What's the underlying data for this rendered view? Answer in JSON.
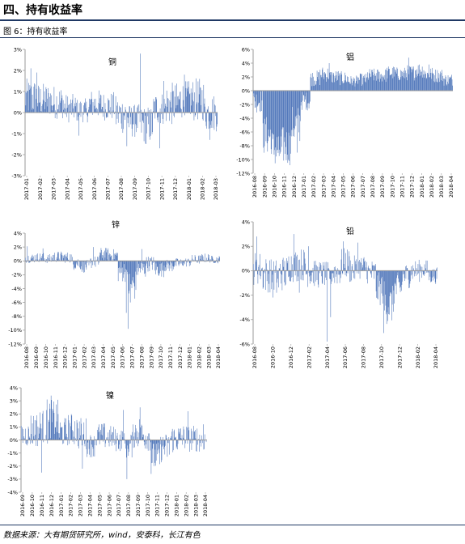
{
  "header": {
    "section_title": "四、持有收益率",
    "figure_caption": "图 6：持有收益率",
    "source": "数据来源：大有期货研究所，wind，安泰科，长江有色"
  },
  "style": {
    "bar_color": "#4a72b8",
    "axis_color": "#999999"
  },
  "chart_data": [
    {
      "type": "bar",
      "title": "铜",
      "ylim": [
        -3,
        3
      ],
      "yticks": [
        3,
        2,
        1,
        0,
        -1,
        -2,
        -3
      ],
      "ytick_labels": [
        "3%",
        "2%",
        "1%",
        "0%",
        "-1%",
        "-2%",
        "-3%"
      ],
      "x_labels": [
        "2017-01",
        "2017-02",
        "2017-03",
        "2017-04",
        "2017-05",
        "2017-06",
        "2017-07",
        "2017-08",
        "2017-09",
        "2017-10",
        "2017-11",
        "2017-12",
        "2018-01",
        "2018-02",
        "2018-03"
      ],
      "segments": [
        [
          0.7,
          0.8
        ],
        [
          0.6,
          0.7
        ],
        [
          0.5,
          0.7
        ],
        [
          0.2,
          0.6
        ],
        [
          0.1,
          0.5
        ],
        [
          0.4,
          0.6
        ],
        [
          0.3,
          0.6
        ],
        [
          -0.1,
          0.8
        ],
        [
          -0.4,
          0.7
        ],
        [
          -0.6,
          0.8
        ],
        [
          0.2,
          0.7
        ],
        [
          0.4,
          0.9
        ],
        [
          0.6,
          0.8
        ],
        [
          0.6,
          0.9
        ],
        [
          0.0,
          0.8
        ]
      ],
      "spikes": [
        [
          0.03,
          2.1
        ],
        [
          0.06,
          1.9
        ],
        [
          0.28,
          -1.1
        ],
        [
          0.48,
          -0.3
        ],
        [
          0.53,
          -1.6
        ],
        [
          0.63,
          -1.5
        ],
        [
          0.7,
          -1.7
        ],
        [
          0.6,
          2.8
        ],
        [
          0.72,
          1.5
        ],
        [
          0.83,
          1.8
        ],
        [
          0.96,
          -1.3
        ]
      ]
    },
    {
      "type": "bar",
      "title": "铝",
      "ylim": [
        -12,
        6
      ],
      "yticks": [
        6,
        4,
        2,
        0,
        -2,
        -4,
        -6,
        -8,
        -10,
        -12
      ],
      "ytick_labels": [
        "6%",
        "4%",
        "2%",
        "0%",
        "-2%",
        "-4%",
        "-6%",
        "-8%",
        "-10%",
        "-12%"
      ],
      "x_labels": [
        "2016-08",
        "2016-09",
        "2016-10",
        "2016-11",
        "2016-12",
        "2017-01",
        "2017-02",
        "2017-03",
        "2017-04",
        "2017-05",
        "2017-06",
        "2017-07",
        "2017-08",
        "2017-09",
        "2017-10",
        "2017-11",
        "2017-12",
        "2018-01",
        "2018-02",
        "2018-03",
        "2018-04"
      ],
      "segments": [
        [
          -1.5,
          1.5
        ],
        [
          -6.5,
          2.5
        ],
        [
          -8.5,
          2.5
        ],
        [
          -8,
          2.5
        ],
        [
          -5,
          2.5
        ],
        [
          -1.5,
          1.2
        ],
        [
          1.8,
          1.0
        ],
        [
          2.4,
          1.0
        ],
        [
          2.0,
          0.9
        ],
        [
          1.8,
          0.9
        ],
        [
          1.4,
          0.7
        ],
        [
          1.6,
          0.8
        ],
        [
          2.2,
          0.9
        ],
        [
          2.2,
          0.9
        ],
        [
          2.6,
          0.9
        ],
        [
          2.4,
          0.9
        ],
        [
          2.6,
          1.0
        ],
        [
          3.0,
          1.0
        ],
        [
          2.4,
          0.9
        ],
        [
          2.2,
          0.9
        ],
        [
          1.6,
          0.8
        ]
      ],
      "spikes": [
        [
          0.13,
          -9.5
        ],
        [
          0.18,
          -10.2
        ],
        [
          0.22,
          -9.0
        ],
        [
          0.09,
          -8.5
        ],
        [
          0.78,
          4.8
        ],
        [
          0.88,
          3.8
        ],
        [
          0.38,
          4.0
        ]
      ]
    },
    {
      "type": "bar",
      "title": "锌",
      "ylim": [
        -12,
        4
      ],
      "yticks": [
        4,
        2,
        0,
        -2,
        -4,
        -6,
        -8,
        -10,
        -12
      ],
      "ytick_labels": [
        "4%",
        "2%",
        "0%",
        "-2%",
        "-4%",
        "-6%",
        "-8%",
        "-10%",
        "-12%"
      ],
      "x_labels": [
        "2016-08",
        "2016-09",
        "2016-10",
        "2016-11",
        "2016-12",
        "2017-01",
        "2017-02",
        "2017-03",
        "2017-04",
        "2017-05",
        "2017-06",
        "2017-07",
        "2017-08",
        "2017-09",
        "2017-10",
        "2017-11",
        "2017-12",
        "2018-01",
        "2018-02",
        "2018-03",
        "2018-04"
      ],
      "segments": [
        [
          0.4,
          0.6
        ],
        [
          0.5,
          0.6
        ],
        [
          0.3,
          0.6
        ],
        [
          0.6,
          0.7
        ],
        [
          0.5,
          0.7
        ],
        [
          -0.3,
          0.9
        ],
        [
          -0.8,
          0.8
        ],
        [
          -0.2,
          0.8
        ],
        [
          1.0,
          0.8
        ],
        [
          0.8,
          0.8
        ],
        [
          -1.5,
          1.4
        ],
        [
          -3.5,
          2.0
        ],
        [
          -1.2,
          1.2
        ],
        [
          -0.4,
          1.0
        ],
        [
          -1.2,
          1.0
        ],
        [
          -0.7,
          0.8
        ],
        [
          -0.4,
          0.7
        ],
        [
          -0.2,
          0.6
        ],
        [
          0.2,
          0.6
        ],
        [
          0.4,
          0.6
        ],
        [
          0.2,
          0.5
        ]
      ],
      "spikes": [
        [
          0.01,
          2.1
        ],
        [
          0.53,
          -9.8
        ],
        [
          0.52,
          -7.5
        ],
        [
          0.54,
          -6.0
        ],
        [
          0.09,
          1.8
        ],
        [
          0.6,
          1.7
        ],
        [
          0.35,
          2.0
        ],
        [
          0.96,
          0.7
        ]
      ]
    },
    {
      "type": "bar",
      "title": "铅",
      "ylim": [
        -6,
        4
      ],
      "yticks": [
        4,
        2,
        0,
        -2,
        -4,
        -6
      ],
      "ytick_labels": [
        "4%",
        "2%",
        "0%",
        "-2%",
        "-4%",
        "-6%"
      ],
      "x_labels": [
        "2016-08",
        "2016-10",
        "2016-12",
        "2017-02",
        "2017-04",
        "2017-06",
        "2017-08",
        "2017-10",
        "2017-12",
        "2018-02",
        "2018-04"
      ],
      "segments": [
        [
          0.2,
          1.2
        ],
        [
          -0.3,
          1.3
        ],
        [
          -0.7,
          1.5
        ],
        [
          -0.2,
          1.3
        ],
        [
          0.4,
          1.2
        ],
        [
          0.5,
          1.2
        ],
        [
          -0.1,
          1.1
        ],
        [
          -0.3,
          1.0
        ],
        [
          -0.3,
          0.9
        ],
        [
          -0.1,
          1.0
        ],
        [
          0.6,
          1.1
        ],
        [
          0.1,
          1.0
        ],
        [
          0.3,
          0.9
        ],
        [
          -0.2,
          1.0
        ],
        [
          -1.5,
          1.2
        ],
        [
          -2.8,
          1.4
        ],
        [
          -1.5,
          1.2
        ],
        [
          -0.4,
          0.9
        ],
        [
          0.0,
          0.8
        ],
        [
          0.1,
          0.7
        ],
        [
          -0.4,
          0.6
        ]
      ],
      "spikes": [
        [
          0.02,
          2.8
        ],
        [
          0.22,
          3.0
        ],
        [
          0.25,
          -1.8
        ],
        [
          0.4,
          -5.8
        ],
        [
          0.42,
          -3.8
        ],
        [
          0.49,
          2.4
        ],
        [
          0.57,
          2.3
        ],
        [
          0.71,
          -5.1
        ],
        [
          0.3,
          2.0
        ]
      ]
    },
    {
      "type": "bar",
      "title": "镍",
      "ylim": [
        -4,
        4
      ],
      "yticks": [
        4,
        3,
        2,
        1,
        0,
        -1,
        -2,
        -3,
        -4
      ],
      "ytick_labels": [
        "4%",
        "3%",
        "2%",
        "1%",
        "0%",
        "-1%",
        "-2%",
        "-3%",
        "-4%"
      ],
      "x_labels": [
        "2016-09",
        "2016-10",
        "2016-11",
        "2016-12",
        "2017-01",
        "2017-02",
        "2017-03",
        "2017-04",
        "2017-05",
        "2017-06",
        "2017-07",
        "2017-08",
        "2017-09",
        "2017-10",
        "2017-11",
        "2017-12",
        "2018-01",
        "2018-02",
        "2018-03",
        "2018-04"
      ],
      "segments": [
        [
          0.4,
          0.8
        ],
        [
          0.8,
          1.2
        ],
        [
          1.0,
          1.2
        ],
        [
          1.6,
          1.3
        ],
        [
          0.6,
          1.0
        ],
        [
          0.8,
          1.1
        ],
        [
          0.5,
          1.1
        ],
        [
          -0.4,
          0.8
        ],
        [
          0.3,
          0.9
        ],
        [
          0.2,
          0.8
        ],
        [
          0.0,
          0.8
        ],
        [
          -0.4,
          0.9
        ],
        [
          0.6,
          1.1
        ],
        [
          0.3,
          1.0
        ],
        [
          -1.3,
          1.0
        ],
        [
          -0.6,
          1.0
        ],
        [
          0.1,
          1.0
        ],
        [
          0.2,
          0.9
        ],
        [
          0.1,
          0.9
        ],
        [
          0.0,
          0.8
        ]
      ],
      "spikes": [
        [
          0.16,
          3.4
        ],
        [
          0.14,
          3.1
        ],
        [
          0.11,
          -2.5
        ],
        [
          0.33,
          -2.2
        ],
        [
          0.57,
          -3.0
        ],
        [
          0.55,
          2.3
        ],
        [
          0.64,
          2.5
        ],
        [
          0.7,
          -2.6
        ],
        [
          0.9,
          2.2
        ],
        [
          0.98,
          1.2
        ]
      ]
    }
  ]
}
